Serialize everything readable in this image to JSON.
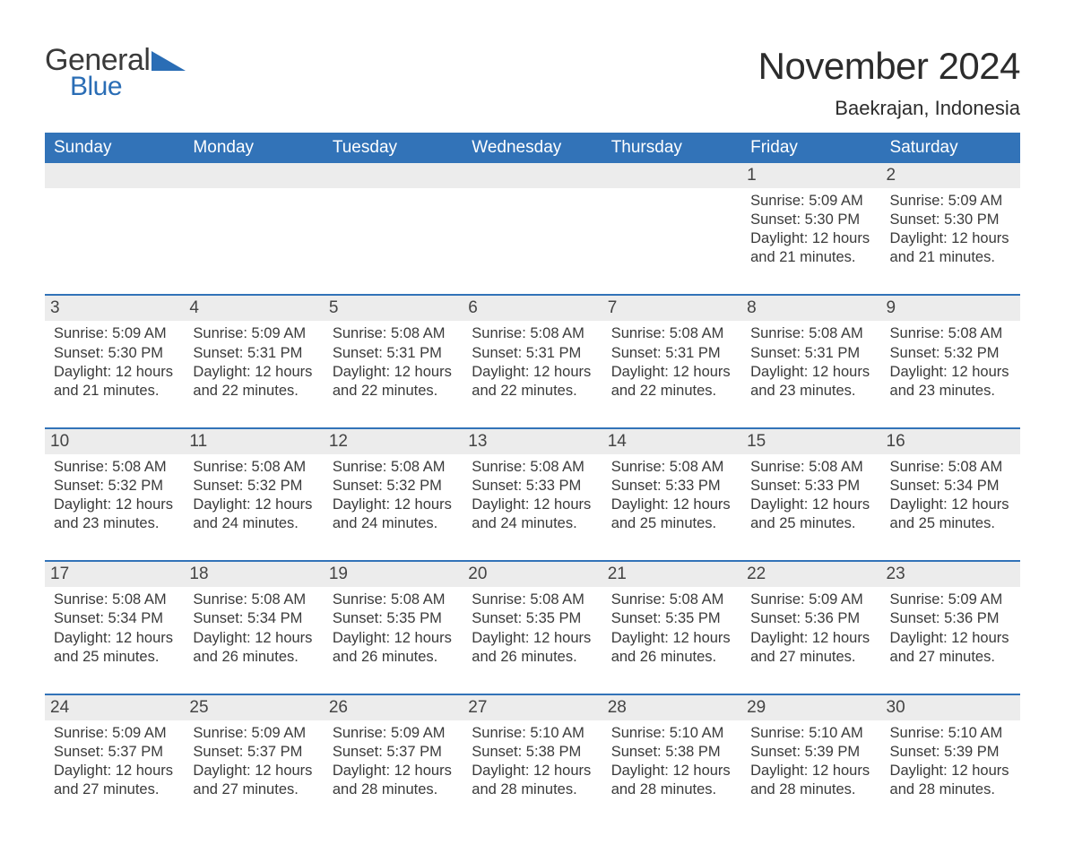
{
  "logo": {
    "text1": "General",
    "text2": "Blue",
    "accent_color": "#2a6db5",
    "text_color": "#3a3a3a"
  },
  "title": "November 2024",
  "location": "Baekrajan, Indonesia",
  "colors": {
    "header_bg": "#3273b8",
    "header_text": "#ffffff",
    "strip_bg": "#ececec",
    "strip_border": "#3273b8",
    "body_text": "#3a3a3a",
    "page_bg": "#ffffff"
  },
  "days_of_week": [
    "Sunday",
    "Monday",
    "Tuesday",
    "Wednesday",
    "Thursday",
    "Friday",
    "Saturday"
  ],
  "weeks": [
    [
      {
        "blank": true
      },
      {
        "blank": true
      },
      {
        "blank": true
      },
      {
        "blank": true
      },
      {
        "blank": true
      },
      {
        "day": "1",
        "sunrise": "Sunrise: 5:09 AM",
        "sunset": "Sunset: 5:30 PM",
        "daylight": "Daylight: 12 hours and 21 minutes."
      },
      {
        "day": "2",
        "sunrise": "Sunrise: 5:09 AM",
        "sunset": "Sunset: 5:30 PM",
        "daylight": "Daylight: 12 hours and 21 minutes."
      }
    ],
    [
      {
        "day": "3",
        "sunrise": "Sunrise: 5:09 AM",
        "sunset": "Sunset: 5:30 PM",
        "daylight": "Daylight: 12 hours and 21 minutes."
      },
      {
        "day": "4",
        "sunrise": "Sunrise: 5:09 AM",
        "sunset": "Sunset: 5:31 PM",
        "daylight": "Daylight: 12 hours and 22 minutes."
      },
      {
        "day": "5",
        "sunrise": "Sunrise: 5:08 AM",
        "sunset": "Sunset: 5:31 PM",
        "daylight": "Daylight: 12 hours and 22 minutes."
      },
      {
        "day": "6",
        "sunrise": "Sunrise: 5:08 AM",
        "sunset": "Sunset: 5:31 PM",
        "daylight": "Daylight: 12 hours and 22 minutes."
      },
      {
        "day": "7",
        "sunrise": "Sunrise: 5:08 AM",
        "sunset": "Sunset: 5:31 PM",
        "daylight": "Daylight: 12 hours and 22 minutes."
      },
      {
        "day": "8",
        "sunrise": "Sunrise: 5:08 AM",
        "sunset": "Sunset: 5:31 PM",
        "daylight": "Daylight: 12 hours and 23 minutes."
      },
      {
        "day": "9",
        "sunrise": "Sunrise: 5:08 AM",
        "sunset": "Sunset: 5:32 PM",
        "daylight": "Daylight: 12 hours and 23 minutes."
      }
    ],
    [
      {
        "day": "10",
        "sunrise": "Sunrise: 5:08 AM",
        "sunset": "Sunset: 5:32 PM",
        "daylight": "Daylight: 12 hours and 23 minutes."
      },
      {
        "day": "11",
        "sunrise": "Sunrise: 5:08 AM",
        "sunset": "Sunset: 5:32 PM",
        "daylight": "Daylight: 12 hours and 24 minutes."
      },
      {
        "day": "12",
        "sunrise": "Sunrise: 5:08 AM",
        "sunset": "Sunset: 5:32 PM",
        "daylight": "Daylight: 12 hours and 24 minutes."
      },
      {
        "day": "13",
        "sunrise": "Sunrise: 5:08 AM",
        "sunset": "Sunset: 5:33 PM",
        "daylight": "Daylight: 12 hours and 24 minutes."
      },
      {
        "day": "14",
        "sunrise": "Sunrise: 5:08 AM",
        "sunset": "Sunset: 5:33 PM",
        "daylight": "Daylight: 12 hours and 25 minutes."
      },
      {
        "day": "15",
        "sunrise": "Sunrise: 5:08 AM",
        "sunset": "Sunset: 5:33 PM",
        "daylight": "Daylight: 12 hours and 25 minutes."
      },
      {
        "day": "16",
        "sunrise": "Sunrise: 5:08 AM",
        "sunset": "Sunset: 5:34 PM",
        "daylight": "Daylight: 12 hours and 25 minutes."
      }
    ],
    [
      {
        "day": "17",
        "sunrise": "Sunrise: 5:08 AM",
        "sunset": "Sunset: 5:34 PM",
        "daylight": "Daylight: 12 hours and 25 minutes."
      },
      {
        "day": "18",
        "sunrise": "Sunrise: 5:08 AM",
        "sunset": "Sunset: 5:34 PM",
        "daylight": "Daylight: 12 hours and 26 minutes."
      },
      {
        "day": "19",
        "sunrise": "Sunrise: 5:08 AM",
        "sunset": "Sunset: 5:35 PM",
        "daylight": "Daylight: 12 hours and 26 minutes."
      },
      {
        "day": "20",
        "sunrise": "Sunrise: 5:08 AM",
        "sunset": "Sunset: 5:35 PM",
        "daylight": "Daylight: 12 hours and 26 minutes."
      },
      {
        "day": "21",
        "sunrise": "Sunrise: 5:08 AM",
        "sunset": "Sunset: 5:35 PM",
        "daylight": "Daylight: 12 hours and 26 minutes."
      },
      {
        "day": "22",
        "sunrise": "Sunrise: 5:09 AM",
        "sunset": "Sunset: 5:36 PM",
        "daylight": "Daylight: 12 hours and 27 minutes."
      },
      {
        "day": "23",
        "sunrise": "Sunrise: 5:09 AM",
        "sunset": "Sunset: 5:36 PM",
        "daylight": "Daylight: 12 hours and 27 minutes."
      }
    ],
    [
      {
        "day": "24",
        "sunrise": "Sunrise: 5:09 AM",
        "sunset": "Sunset: 5:37 PM",
        "daylight": "Daylight: 12 hours and 27 minutes."
      },
      {
        "day": "25",
        "sunrise": "Sunrise: 5:09 AM",
        "sunset": "Sunset: 5:37 PM",
        "daylight": "Daylight: 12 hours and 27 minutes."
      },
      {
        "day": "26",
        "sunrise": "Sunrise: 5:09 AM",
        "sunset": "Sunset: 5:37 PM",
        "daylight": "Daylight: 12 hours and 28 minutes."
      },
      {
        "day": "27",
        "sunrise": "Sunrise: 5:10 AM",
        "sunset": "Sunset: 5:38 PM",
        "daylight": "Daylight: 12 hours and 28 minutes."
      },
      {
        "day": "28",
        "sunrise": "Sunrise: 5:10 AM",
        "sunset": "Sunset: 5:38 PM",
        "daylight": "Daylight: 12 hours and 28 minutes."
      },
      {
        "day": "29",
        "sunrise": "Sunrise: 5:10 AM",
        "sunset": "Sunset: 5:39 PM",
        "daylight": "Daylight: 12 hours and 28 minutes."
      },
      {
        "day": "30",
        "sunrise": "Sunrise: 5:10 AM",
        "sunset": "Sunset: 5:39 PM",
        "daylight": "Daylight: 12 hours and 28 minutes."
      }
    ]
  ]
}
